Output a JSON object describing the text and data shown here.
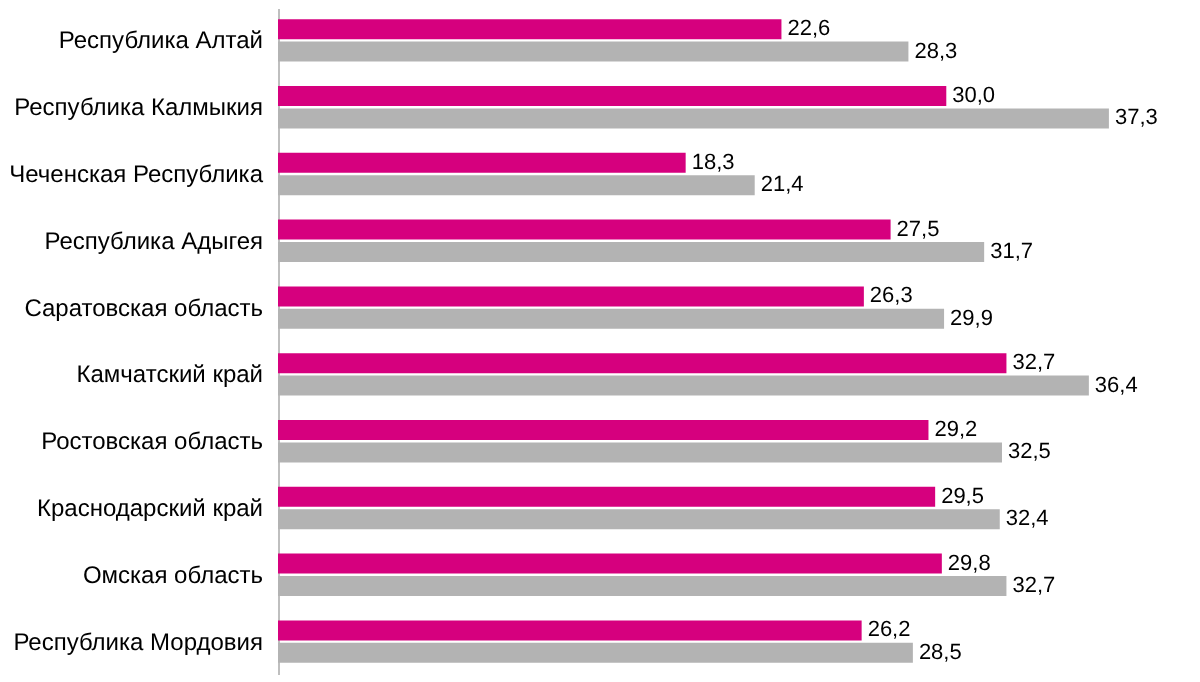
{
  "chart_data": {
    "type": "bar",
    "orientation": "horizontal",
    "categories": [
      "Республика Алтай",
      "Республика Калмыкия",
      "Чеченская Республика",
      "Республика Адыгея",
      "Саратовская область",
      "Камчатский край",
      "Ростовская область",
      "Краснодарский край",
      "Омская область",
      "Республика Мордовия"
    ],
    "series": [
      {
        "color": "#d6007e",
        "values": [
          22.6,
          30.0,
          18.3,
          27.5,
          26.3,
          32.7,
          29.2,
          29.5,
          29.8,
          26.2
        ],
        "value_labels": [
          "22,6",
          "30,0",
          "18,3",
          "27,5",
          "26,3",
          "32,7",
          "29,2",
          "29,5",
          "29,8",
          "26,2"
        ]
      },
      {
        "color": "#b3b3b3",
        "values": [
          28.3,
          37.3,
          21.4,
          31.7,
          29.9,
          36.4,
          32.5,
          32.4,
          32.7,
          28.5
        ],
        "value_labels": [
          "28,3",
          "37,3",
          "21,4",
          "31,7",
          "29,9",
          "36,4",
          "32,5",
          "32,4",
          "32,7",
          "28,5"
        ]
      }
    ],
    "legend": false,
    "grid": false
  }
}
